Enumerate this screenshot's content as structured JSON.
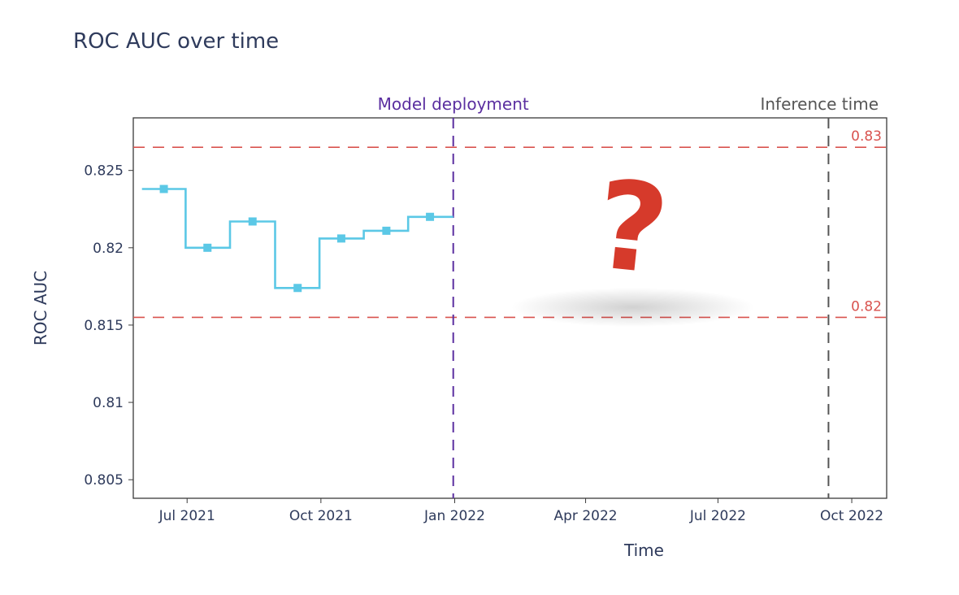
{
  "chart_data": {
    "type": "line",
    "title": "ROC AUC over time",
    "xlabel": "Time",
    "ylabel": "ROC AUC",
    "x_tick_labels": [
      "Jul 2021",
      "Oct 2021",
      "Jan 2022",
      "Apr 2022",
      "Jul 2022",
      "Oct 2022"
    ],
    "x_ticks": [
      "2021-07-01",
      "2021-10-01",
      "2022-01-01",
      "2022-04-01",
      "2022-07-01",
      "2022-10-01"
    ],
    "xlim": [
      "2021-05-25",
      "2022-10-25"
    ],
    "y_ticks": [
      0.805,
      0.81,
      0.815,
      0.82,
      0.825
    ],
    "y_tick_labels": [
      "0.805",
      "0.81",
      "0.815",
      "0.82",
      "0.825"
    ],
    "ylim": [
      0.8038,
      0.8284
    ],
    "line_shape": "step",
    "series": [
      {
        "color": "#5bc8e6",
        "points": [
          {
            "x": "2021-06-15",
            "y": 0.8238
          },
          {
            "x": "2021-07-15",
            "y": 0.82
          },
          {
            "x": "2021-08-15",
            "y": 0.8217
          },
          {
            "x": "2021-09-15",
            "y": 0.8174
          },
          {
            "x": "2021-10-15",
            "y": 0.8206
          },
          {
            "x": "2021-11-15",
            "y": 0.8211
          },
          {
            "x": "2021-12-15",
            "y": 0.822
          }
        ],
        "line_end_x": "2021-12-31"
      }
    ],
    "vlines": [
      {
        "x": "2021-12-31",
        "label": "Model deployment",
        "color": "#5b2fa0"
      },
      {
        "x": "2022-09-15",
        "label": "Inference time",
        "color": "#555555"
      }
    ],
    "hlines": [
      {
        "y": 0.8265,
        "label": "0.83",
        "color": "#d9534f"
      },
      {
        "y": 0.8155,
        "label": "0.82",
        "color": "#d9534f"
      }
    ],
    "annotation": {
      "text": "?",
      "color": "#d63a2b"
    },
    "grid": false
  }
}
